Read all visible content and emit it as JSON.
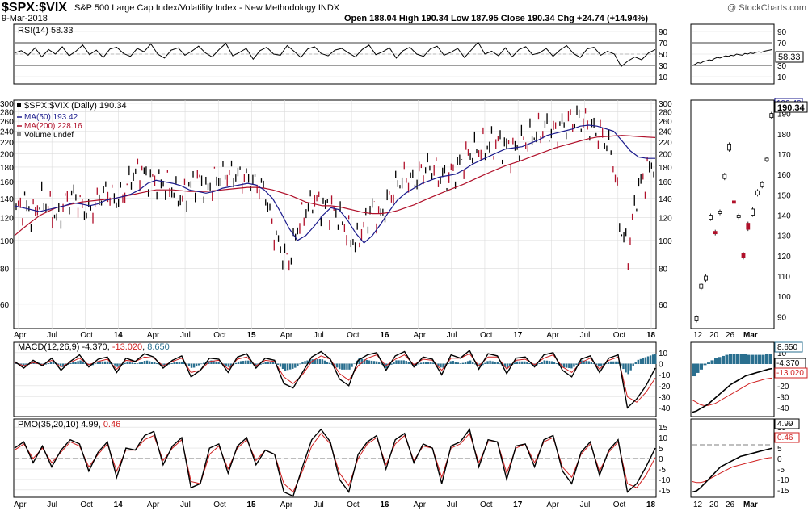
{
  "header": {
    "symbol": "$SPX:$VIX",
    "description": "S&P 500 Large Cap Index/Volatility Index - New Methodology  INDX",
    "watermark": "@ StockCharts.com",
    "date": "9-Mar-2018",
    "quote": "Open 188.04  High 190.34  Low 187.95  Close 190.34  Chg +24.74 (+14.94%)"
  },
  "colors": {
    "price": "#000000",
    "ma50": "#1a1a8c",
    "ma200": "#b0102a",
    "down": "#b0102a",
    "hist": "#2a6f8f",
    "signal": "#d02020",
    "grid": "#dcdcdc",
    "frame": "#000000"
  },
  "chart_data": [
    {
      "type": "line",
      "name": "rsi",
      "label": "RSI(14) 58.33",
      "ylim": [
        0,
        100
      ],
      "yticks": [
        "90",
        "70",
        "50",
        "30",
        "10"
      ],
      "overbought": 70,
      "oversold": 30,
      "last_value_label": "58.33",
      "values": [
        52,
        56,
        48,
        61,
        45,
        58,
        50,
        63,
        47,
        55,
        66,
        49,
        57,
        44,
        59,
        62,
        51,
        46,
        60,
        54,
        68,
        50,
        43,
        57,
        61,
        48,
        55,
        64,
        52,
        45,
        58,
        69,
        47,
        53,
        60,
        41,
        56,
        62,
        50,
        48,
        65,
        55,
        44,
        59,
        63,
        51,
        47,
        57,
        60,
        52,
        45,
        58,
        66,
        49,
        54,
        61,
        43,
        56,
        62,
        50,
        46,
        59,
        64,
        48,
        53,
        60,
        44,
        57,
        71,
        50,
        55,
        47,
        61,
        45,
        58,
        63,
        49,
        52,
        60,
        46,
        57,
        65,
        51,
        44,
        59,
        62,
        48,
        55,
        50,
        28,
        38,
        45,
        40,
        52,
        58
      ],
      "last_30": [
        30,
        32,
        35,
        34,
        37,
        38,
        40,
        39,
        42,
        44,
        43,
        45,
        47,
        46,
        48,
        47,
        50,
        49,
        48,
        51,
        50,
        52,
        51,
        53,
        54,
        53,
        55,
        56,
        57,
        58
      ]
    },
    {
      "type": "line",
      "name": "price",
      "legend": [
        "$SPX:$VIX (Daily) 190.34",
        "MA(50) 193.42",
        "MA(200) 228.16",
        "Volume undef"
      ],
      "scale": "log",
      "ylim": [
        50,
        300
      ],
      "yticks": [
        "300",
        "280",
        "260",
        "240",
        "220",
        "200",
        "180",
        "160",
        "140",
        "120",
        "100",
        "80",
        "60"
      ],
      "xticks": [
        "Apr",
        "Jul",
        "Oct",
        "14",
        "Apr",
        "Jul",
        "Oct",
        "15",
        "Apr",
        "Jul",
        "Oct",
        "16",
        "Apr",
        "Jul",
        "Oct",
        "17",
        "Apr",
        "Jul",
        "Oct",
        "18"
      ],
      "price": [
        128,
        135,
        122,
        140,
        132,
        118,
        138,
        145,
        130,
        126,
        142,
        150,
        138,
        146,
        170,
        176,
        165,
        160,
        158,
        150,
        140,
        155,
        165,
        150,
        162,
        170,
        172,
        168,
        165,
        158,
        150,
        110,
        92,
        85,
        112,
        128,
        140,
        132,
        130,
        122,
        108,
        98,
        112,
        132,
        120,
        140,
        158,
        168,
        160,
        176,
        182,
        170,
        165,
        176,
        192,
        205,
        210,
        215,
        220,
        214,
        205,
        220,
        228,
        240,
        248,
        238,
        252,
        262,
        268,
        255,
        240,
        230,
        200,
        110,
        90,
        150,
        168,
        190
      ],
      "ma50": [
        132,
        130,
        128,
        126,
        128,
        130,
        132,
        135,
        134,
        132,
        134,
        138,
        140,
        142,
        145,
        150,
        158,
        162,
        160,
        158,
        155,
        150,
        148,
        146,
        148,
        152,
        154,
        156,
        158,
        156,
        150,
        140,
        125,
        110,
        100,
        104,
        112,
        122,
        130,
        128,
        118,
        106,
        98,
        104,
        114,
        126,
        138,
        146,
        152,
        158,
        162,
        166,
        168,
        170,
        176,
        184,
        190,
        196,
        202,
        208,
        210,
        212,
        218,
        224,
        232,
        236,
        240,
        244,
        250,
        252,
        250,
        245,
        240,
        222,
        205,
        195,
        193,
        193
      ],
      "ma200": [
        104,
        110,
        116,
        122,
        126,
        130,
        132,
        134,
        136,
        137,
        138,
        139,
        140,
        142,
        144,
        146,
        148,
        150,
        150,
        150,
        149,
        148,
        148,
        148,
        149,
        150,
        151,
        152,
        153,
        153,
        152,
        150,
        147,
        144,
        140,
        136,
        134,
        132,
        132,
        131,
        129,
        127,
        125,
        124,
        124,
        125,
        127,
        130,
        133,
        137,
        141,
        145,
        149,
        153,
        157,
        162,
        167,
        172,
        177,
        182,
        186,
        190,
        195,
        200,
        205,
        210,
        214,
        218,
        222,
        226,
        229,
        230,
        231,
        232,
        231,
        230,
        229,
        228
      ],
      "recent_candles": [
        {
          "o": 88,
          "c": 90,
          "up": true
        },
        {
          "o": 104,
          "c": 106,
          "up": true
        },
        {
          "o": 108,
          "c": 110,
          "up": true
        },
        {
          "o": 138,
          "c": 140,
          "up": true
        },
        {
          "o": 132,
          "c": 131,
          "up": false
        },
        {
          "o": 142,
          "c": 142,
          "up": true
        },
        {
          "o": 158,
          "c": 160,
          "up": true
        },
        {
          "o": 172,
          "c": 175,
          "up": true
        },
        {
          "o": 147,
          "c": 146,
          "up": false
        },
        {
          "o": 140,
          "c": 140,
          "up": true
        },
        {
          "o": 119,
          "c": 121,
          "up": false
        },
        {
          "o": 136,
          "c": 133,
          "up": false
        },
        {
          "o": 140,
          "c": 143,
          "up": true
        },
        {
          "o": 150,
          "c": 152,
          "up": true
        },
        {
          "o": 154,
          "c": 156,
          "up": true
        },
        {
          "o": 168,
          "c": 168,
          "up": true
        },
        {
          "o": 188,
          "c": 190,
          "up": true
        }
      ],
      "right_yticks": [
        "190",
        "180",
        "170",
        "160",
        "150",
        "140",
        "130",
        "120",
        "110",
        "100",
        "90"
      ],
      "right_xticks": [
        "12",
        "20",
        "26",
        "Mar"
      ],
      "last_value_label": "190.34",
      "ma50_value_label": "193.42"
    },
    {
      "type": "line",
      "name": "macd",
      "label_prefix": "MACD(12,26,9)",
      "label_macd": "-4.370",
      "label_signal": "-13.020",
      "label_hist": "8.650",
      "ylim": [
        -45,
        15
      ],
      "yticks": [
        "10",
        "0",
        "-10",
        "-20",
        "-30",
        "-40"
      ],
      "macd": [
        2,
        -4,
        3,
        -2,
        5,
        -6,
        2,
        8,
        -3,
        4,
        6,
        -8,
        5,
        2,
        9,
        6,
        -4,
        3,
        7,
        -12,
        -6,
        5,
        4,
        -8,
        6,
        9,
        -4,
        5,
        3,
        -18,
        -22,
        -8,
        6,
        11,
        4,
        -14,
        -20,
        3,
        8,
        10,
        -6,
        7,
        11,
        -3,
        6,
        4,
        -10,
        8,
        5,
        12,
        -5,
        9,
        7,
        -9,
        5,
        6,
        -3,
        8,
        10,
        -6,
        -12,
        4,
        7,
        -8,
        5,
        8,
        -40,
        -32,
        -20,
        -4
      ],
      "signal": [
        1,
        -2,
        1,
        -1,
        3,
        -3,
        1,
        5,
        -1,
        2,
        4,
        -5,
        3,
        2,
        6,
        5,
        -2,
        2,
        5,
        -8,
        -6,
        2,
        3,
        -5,
        4,
        6,
        -2,
        3,
        2,
        -12,
        -18,
        -10,
        2,
        7,
        4,
        -9,
        -15,
        -2,
        5,
        8,
        -2,
        4,
        8,
        -1,
        4,
        3,
        -6,
        5,
        5,
        9,
        -2,
        6,
        6,
        -5,
        3,
        4,
        -1,
        5,
        8,
        -3,
        -8,
        1,
        5,
        -5,
        3,
        6,
        -30,
        -35,
        -26,
        -13
      ],
      "right_last_30": {
        "macd": [
          -44,
          -43,
          -41,
          -39,
          -37,
          -34,
          -31,
          -28,
          -25,
          -22,
          -19,
          -17,
          -15,
          -13,
          -11,
          -10,
          -9,
          -8,
          -7,
          -6,
          -5,
          -4.4
        ],
        "signal": [
          -33,
          -35,
          -37,
          -38,
          -38,
          -37,
          -36,
          -34,
          -32,
          -30,
          -28,
          -26,
          -24,
          -22,
          -20,
          -18,
          -17,
          -16,
          -15,
          -14,
          -13.5,
          -13.0
        ],
        "hist": [
          -11,
          -8,
          -5,
          -1,
          1,
          3,
          5,
          6,
          7,
          8,
          9,
          9,
          9,
          9,
          9,
          8,
          8,
          8,
          8,
          8,
          8.5,
          8.65
        ]
      }
    },
    {
      "type": "line",
      "name": "pmo",
      "label_prefix": "PMO(35,20,10)",
      "label_pmo": "4.99",
      "label_signal": "0.46",
      "ylim": [
        -17,
        17
      ],
      "yticks": [
        "15",
        "10",
        "5",
        "0",
        "-5",
        "-10",
        "-15"
      ],
      "pmo": [
        5,
        8,
        -2,
        6,
        -4,
        4,
        9,
        7,
        -6,
        3,
        8,
        -9,
        5,
        4,
        11,
        13,
        -3,
        6,
        10,
        -14,
        -12,
        5,
        7,
        -7,
        6,
        10,
        -3,
        4,
        2,
        -16,
        -18,
        -4,
        9,
        14,
        8,
        -10,
        -16,
        2,
        8,
        11,
        -5,
        9,
        12,
        -2,
        7,
        5,
        -12,
        6,
        8,
        14,
        -4,
        9,
        8,
        -10,
        6,
        7,
        -4,
        9,
        11,
        -6,
        -12,
        3,
        8,
        -8,
        4,
        9,
        -16,
        -12,
        -4,
        5
      ],
      "signal": [
        4,
        7,
        0,
        5,
        -2,
        3,
        8,
        6,
        -4,
        2,
        7,
        -6,
        4,
        4,
        9,
        11,
        -1,
        5,
        9,
        -11,
        -12,
        2,
        6,
        -5,
        5,
        9,
        -1,
        4,
        2,
        -12,
        -16,
        -6,
        6,
        12,
        7,
        -7,
        -13,
        0,
        7,
        10,
        -3,
        7,
        11,
        -1,
        6,
        5,
        -9,
        5,
        7,
        12,
        -2,
        8,
        8,
        -7,
        5,
        7,
        -2,
        8,
        10,
        -4,
        -9,
        2,
        7,
        -6,
        3,
        8,
        -12,
        -14,
        -8,
        0.5
      ],
      "right_last_30": {
        "pmo": [
          -16,
          -15.5,
          -14,
          -12,
          -10,
          -8,
          -6,
          -4,
          -3,
          -2,
          -1,
          0,
          1,
          1.5,
          2,
          2.5,
          3,
          3.5,
          4,
          4.5,
          4.99
        ],
        "signal": [
          -11,
          -11.5,
          -11.5,
          -11,
          -10,
          -9,
          -8,
          -7,
          -6,
          -5,
          -4,
          -3.5,
          -3,
          -2.5,
          -2,
          -1.5,
          -1,
          -0.5,
          0,
          0.3,
          0.46
        ]
      }
    }
  ]
}
